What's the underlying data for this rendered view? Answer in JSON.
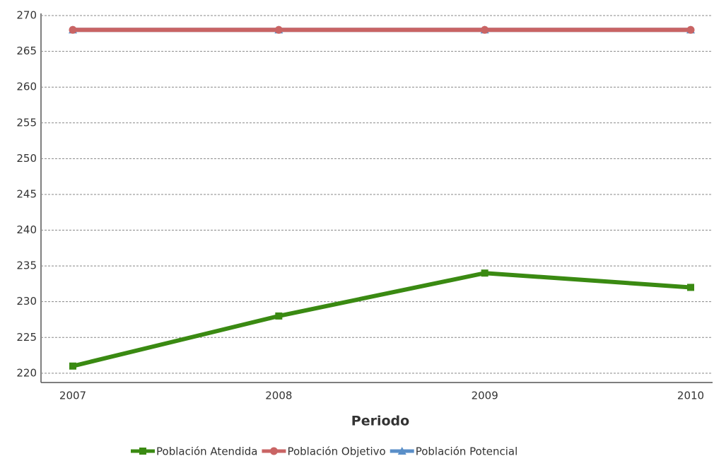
{
  "chart_data": {
    "type": "line",
    "x_label": "Periodo",
    "categories": [
      "2007",
      "2008",
      "2009",
      "2010"
    ],
    "series": [
      {
        "name": "Población Atendida",
        "color": "#3a8a12",
        "marker": "square",
        "values": [
          221,
          228,
          234,
          232
        ]
      },
      {
        "name": "Población Objetivo",
        "color": "#c96464",
        "marker": "circle",
        "values": [
          268,
          268,
          268,
          268
        ]
      },
      {
        "name": "Población Potencial",
        "color": "#5a8fc8",
        "marker": "triangle",
        "values": [
          268,
          268,
          268,
          268
        ]
      }
    ],
    "ylim": [
      218.7,
      270.3
    ],
    "yticks": [
      220,
      225,
      230,
      235,
      240,
      245,
      250,
      255,
      260,
      265,
      270
    ],
    "grid": true,
    "legend": "bottom"
  }
}
